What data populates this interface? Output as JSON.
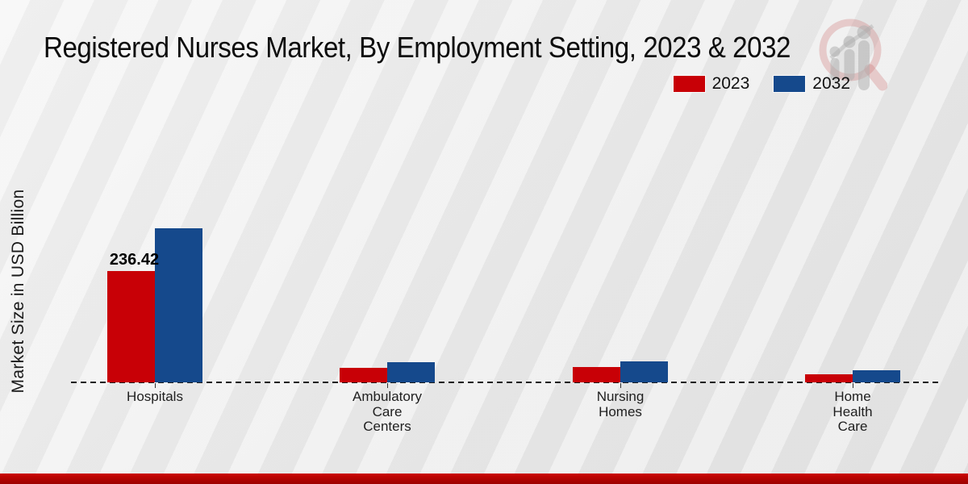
{
  "title": "Registered Nurses Market, By Employment Setting, 2023 & 2032",
  "y_axis_label": "Market Size in USD Billion",
  "legend": [
    {
      "label": "2023",
      "color": "#c80006"
    },
    {
      "label": "2032",
      "color": "#15498c"
    }
  ],
  "watermark_name": "magnifier-bar-chart-logo",
  "chart_data": {
    "type": "bar",
    "categories": [
      "Hospitals",
      "Ambulatory Care Centers",
      "Nursing Homes",
      "Home Health Care"
    ],
    "series": [
      {
        "name": "2023",
        "color": "#c80006",
        "values": [
          236.42,
          30.8,
          31.7,
          17.1
        ]
      },
      {
        "name": "2032",
        "color": "#15498c",
        "values": [
          327.2,
          42.8,
          43.7,
          25.7
        ]
      }
    ],
    "data_labels": [
      {
        "series": "2023",
        "category": "Hospitals",
        "text": "236.42"
      }
    ],
    "title": "Registered Nurses Market, By Employment Setting, 2023 & 2032",
    "xlabel": "",
    "ylabel": "Market Size in USD Billion",
    "ylim": [
      0,
      340
    ],
    "grid": false,
    "legend_position": "top-right",
    "baseline_style": "dashed",
    "y_axis_ticks_visible": false
  },
  "colors": {
    "series_2023": "#c80006",
    "series_2032": "#15498c",
    "footer_bar": "#b30301",
    "background": "#ebebeb",
    "title_text": "#0d0d0d",
    "axis_text": "#1f1f1f"
  }
}
